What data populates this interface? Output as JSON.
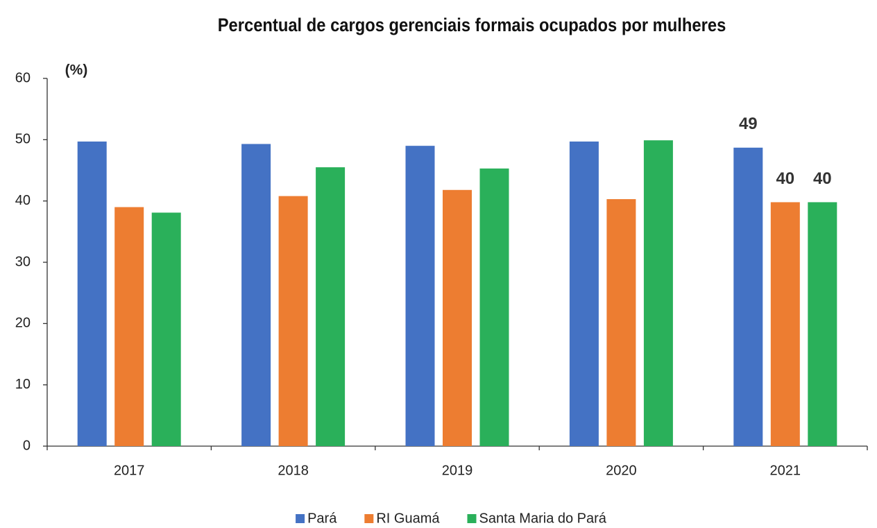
{
  "chart_data": {
    "type": "bar",
    "title": "Percentual de cargos gerenciais formais ocupados por mulheres",
    "y_axis_label": "(%)",
    "categories": [
      "2017",
      "2018",
      "2019",
      "2020",
      "2021"
    ],
    "series": [
      {
        "name": "Pará",
        "color": "#4472c4",
        "values": [
          49.7,
          49.3,
          49.0,
          49.7,
          48.7
        ],
        "value_labels": [
          null,
          null,
          null,
          null,
          "49"
        ]
      },
      {
        "name": "RI Guamá",
        "color": "#ed7d31",
        "values": [
          39.0,
          40.8,
          41.8,
          40.3,
          39.8
        ],
        "value_labels": [
          null,
          null,
          null,
          null,
          "40"
        ]
      },
      {
        "name": "Santa Maria do Pará",
        "color": "#2ab05a",
        "values": [
          38.1,
          45.5,
          45.3,
          49.9,
          39.8
        ],
        "value_labels": [
          null,
          null,
          null,
          null,
          "40"
        ]
      }
    ],
    "ylim": [
      0,
      60
    ],
    "yticks": [
      0,
      10,
      20,
      30,
      40,
      50,
      60
    ],
    "grid": false,
    "legend": "bottom"
  }
}
